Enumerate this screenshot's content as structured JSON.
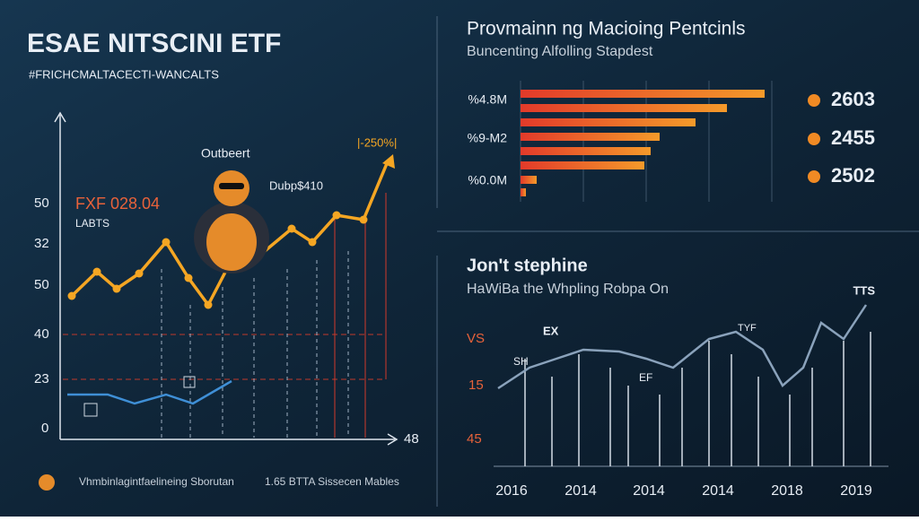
{
  "header": {
    "logo": "ESAE NITSCINI ETF",
    "subtitle": "#FRICHCMALTACECTI-WANCALTS"
  },
  "left_chart": {
    "annotation_top": "|-250%|",
    "label_a": "Outbeert",
    "label_b": "Dubp$410",
    "price": "FXF 028.04",
    "price_sub": "LABTS",
    "y_labels": [
      "50",
      "32",
      "50",
      "40",
      "23",
      "0"
    ],
    "x_end": "48"
  },
  "footer": {
    "left": "Vhmbinlagintfaelineing Sborutan",
    "right": "1.65 BTTA Sissecen Mables"
  },
  "right_top": {
    "title": "Provmainn ng Macioing Pentcinls",
    "subtitle": "Buncenting Alfolling Stapdest",
    "bar_labels": [
      "%4.8M",
      "%9-M2",
      "%0.0M"
    ],
    "stats": [
      "2603",
      "2455",
      "2502"
    ]
  },
  "right_bottom": {
    "title": "Jon't stephine",
    "subtitle": "HaWiBa the Whpling Robpa On",
    "tag": "TTS",
    "labels": [
      "EX",
      "TYF",
      "SH",
      "EF"
    ],
    "y_labels": [
      "VS",
      "15",
      "45"
    ],
    "x_labels": [
      "2016",
      "2014",
      "2014",
      "2014",
      "2018",
      "2019"
    ]
  }
}
